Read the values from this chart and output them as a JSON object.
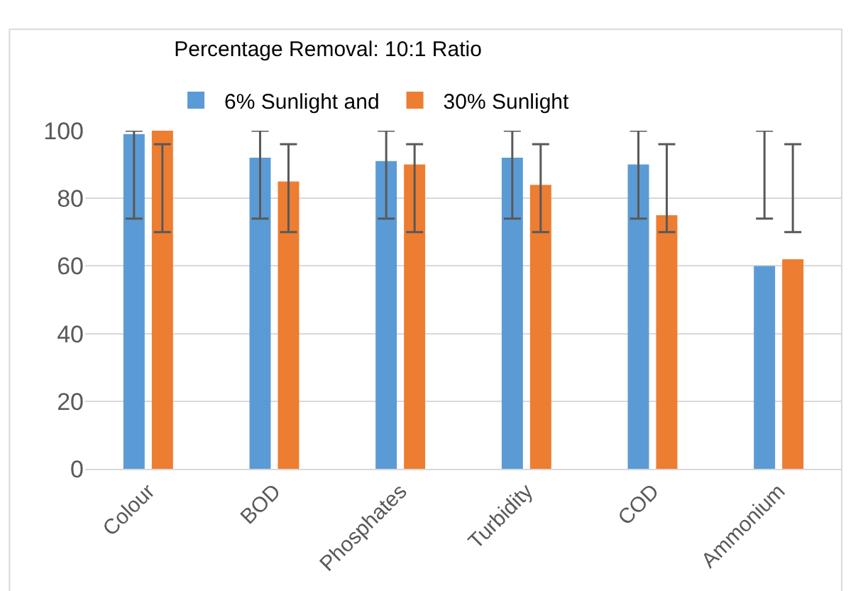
{
  "chart_data": {
    "type": "bar",
    "title": "Percentage Removal: 10:1 Ratio",
    "categories": [
      "Colour",
      "BOD",
      "Phosphates",
      "Turbidity",
      "COD",
      "Ammonium"
    ],
    "series": [
      {
        "name": "6% Sunlight and",
        "color": "#5b9bd5",
        "values": [
          99,
          92,
          91,
          92,
          90,
          60
        ],
        "errors": [
          [
            74,
            100
          ],
          [
            74,
            100
          ],
          [
            74,
            100
          ],
          [
            74,
            100
          ],
          [
            74,
            100
          ],
          [
            74,
            100
          ]
        ]
      },
      {
        "name": "30% Sunlight",
        "color": "#ed7d31",
        "values": [
          100,
          85,
          90,
          84,
          75,
          62
        ],
        "errors": [
          [
            70,
            96
          ],
          [
            70,
            96
          ],
          [
            70,
            96
          ],
          [
            70,
            96
          ],
          [
            70,
            96
          ],
          [
            70,
            96
          ]
        ]
      }
    ],
    "ylim": [
      0,
      100
    ],
    "yticks": [
      0,
      20,
      40,
      60,
      80,
      100
    ],
    "grid": "y",
    "legend": "top"
  }
}
